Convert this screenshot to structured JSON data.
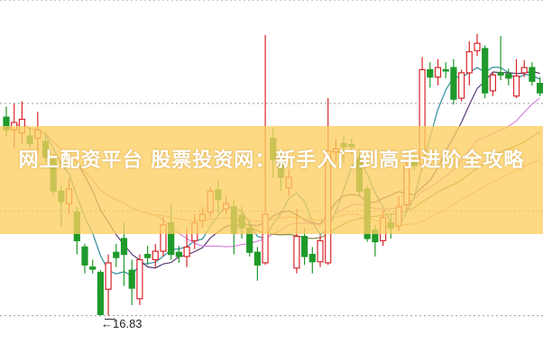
{
  "title": "网上配资平台 股票投资网：新手入门到高手进阶全攻略",
  "chart_data": {
    "type": "candlestick",
    "title": "",
    "xlabel": "",
    "ylabel": "",
    "ylim": [
      15.11,
      28.79
    ],
    "grid": true,
    "legend": "none",
    "colors": {
      "up": "#d8262b",
      "down": "#1f9a2a",
      "ma_lines": [
        "#2f8f9d",
        "#5b3a73",
        "#d880e0",
        "#8a8a3a",
        "#f0a890"
      ]
    },
    "low_annotation": {
      "label": "←16.83",
      "value": 16.83
    },
    "ohlc_fields": [
      "open",
      "high",
      "low",
      "close"
    ],
    "candles": [
      [
        24.35,
        24.75,
        23.63,
        23.87
      ],
      [
        23.87,
        24.87,
        23.15,
        24.15
      ],
      [
        23.75,
        24.95,
        23.35,
        24.27
      ],
      [
        23.63,
        23.95,
        23.15,
        23.35
      ],
      [
        23.55,
        24.55,
        22.95,
        23.87
      ],
      [
        23.43,
        23.75,
        22.67,
        22.83
      ],
      [
        22.75,
        22.95,
        21.35,
        21.55
      ],
      [
        21.55,
        21.75,
        20.23,
        21.15
      ],
      [
        21.07,
        22.03,
        20.67,
        21.63
      ],
      [
        20.75,
        20.95,
        19.15,
        19.67
      ],
      [
        19.43,
        19.55,
        18.43,
        18.75
      ],
      [
        18.67,
        18.95,
        18.43,
        18.59
      ],
      [
        18.47,
        18.55,
        16.83,
        16.87
      ],
      [
        17.83,
        19.15,
        16.83,
        18.83
      ],
      [
        19.23,
        19.55,
        18.67,
        19.03
      ],
      [
        19.75,
        20.35,
        17.95,
        19.15
      ],
      [
        18.55,
        18.95,
        17.23,
        17.87
      ],
      [
        17.47,
        19.15,
        17.23,
        18.95
      ],
      [
        19.15,
        19.47,
        18.75,
        19.03
      ],
      [
        18.95,
        19.55,
        18.67,
        19.27
      ],
      [
        19.27,
        20.55,
        19.07,
        20.27
      ],
      [
        20.35,
        21.07,
        18.95,
        19.15
      ],
      [
        19.23,
        19.47,
        18.83,
        19.07
      ],
      [
        19.07,
        20.15,
        18.67,
        19.43
      ],
      [
        19.67,
        20.67,
        19.35,
        20.35
      ],
      [
        20.43,
        20.95,
        20.15,
        20.67
      ],
      [
        20.75,
        21.71,
        20.55,
        21.55
      ],
      [
        21.59,
        21.95,
        20.75,
        21.23
      ],
      [
        20.87,
        21.35,
        20.67,
        21.07
      ],
      [
        20.95,
        21.23,
        19.15,
        19.95
      ],
      [
        20.63,
        20.95,
        19.75,
        20.15
      ],
      [
        20.15,
        20.43,
        19.07,
        19.23
      ],
      [
        19.23,
        19.43,
        18.15,
        18.75
      ],
      [
        18.83,
        27.47,
        18.75,
        20.67
      ],
      [
        23.55,
        23.95,
        22.07,
        22.75
      ],
      [
        22.75,
        22.95,
        21.55,
        22.07
      ],
      [
        21.67,
        22.35,
        21.35,
        22.07
      ],
      [
        18.63,
        20.87,
        18.43,
        19.83
      ],
      [
        19.83,
        20.15,
        18.75,
        19.07
      ],
      [
        19.15,
        19.43,
        18.43,
        18.87
      ],
      [
        18.87,
        19.87,
        18.67,
        19.67
      ],
      [
        18.83,
        25.07,
        18.75,
        23.07
      ],
      [
        23.03,
        23.55,
        22.63,
        23.15
      ],
      [
        23.35,
        23.63,
        22.63,
        23.23
      ],
      [
        23.31,
        23.55,
        22.95,
        23.23
      ],
      [
        22.75,
        23.15,
        21.35,
        21.55
      ],
      [
        21.63,
        21.75,
        19.63,
        19.75
      ],
      [
        20.07,
        20.27,
        19.07,
        19.63
      ],
      [
        19.67,
        20.83,
        19.47,
        20.55
      ],
      [
        20.35,
        20.67,
        19.75,
        20.15
      ],
      [
        20.23,
        21.35,
        20.03,
        20.95
      ],
      [
        21.03,
        22.75,
        20.83,
        22.47
      ],
      [
        22.67,
        22.95,
        22.35,
        22.51
      ],
      [
        22.55,
        26.63,
        22.35,
        26.15
      ],
      [
        26.15,
        26.43,
        25.47,
        25.87
      ],
      [
        25.87,
        26.55,
        25.55,
        26.23
      ],
      [
        26.15,
        26.43,
        25.83,
        26.11
      ],
      [
        26.23,
        26.55,
        24.83,
        25.03
      ],
      [
        25.07,
        26.15,
        24.95,
        26.03
      ],
      [
        26.03,
        27.23,
        25.55,
        26.83
      ],
      [
        26.87,
        27.51,
        26.67,
        27.15
      ],
      [
        26.95,
        27.07,
        25.07,
        25.27
      ],
      [
        25.35,
        26.03,
        25.15,
        25.95
      ],
      [
        26.03,
        27.43,
        25.75,
        25.95
      ],
      [
        25.99,
        26.19,
        25.55,
        25.83
      ],
      [
        25.15,
        26.55,
        25.07,
        25.91
      ],
      [
        26.03,
        26.51,
        25.87,
        26.23
      ],
      [
        26.23,
        26.43,
        25.55,
        25.71
      ],
      [
        25.63,
        25.87,
        25.15,
        25.27
      ]
    ]
  }
}
